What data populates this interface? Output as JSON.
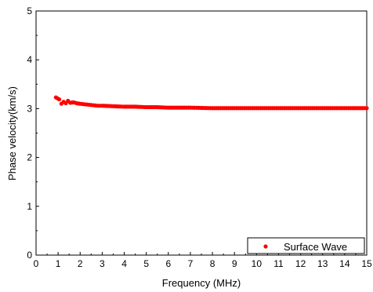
{
  "chart_data": {
    "type": "scatter",
    "xlabel": "Frequency (MHz)",
    "ylabel": "Phase velocity(km/s)",
    "xlim": [
      0,
      15
    ],
    "ylim": [
      0,
      5
    ],
    "x_ticks": [
      "0",
      "1",
      "2",
      "3",
      "4",
      "5",
      "6",
      "7",
      "8",
      "9",
      "10",
      "11",
      "12",
      "13",
      "14",
      "15"
    ],
    "y_ticks": [
      "0",
      "1",
      "2",
      "3",
      "4",
      "5"
    ],
    "grid": false,
    "legend_position": "bottom-right",
    "series": [
      {
        "name": "Surface Wave",
        "color": "#ff0000",
        "marker": "circle",
        "x": [
          0.9,
          1.05,
          1.15,
          1.25,
          1.35,
          1.45,
          1.55,
          1.7,
          1.85,
          2.0,
          2.2,
          2.4,
          2.6,
          2.8,
          3.0,
          3.5,
          4.0,
          4.5,
          5.0,
          5.5,
          6.0,
          7.0,
          8.0,
          9.0,
          10.0,
          11.0,
          12.0,
          13.0,
          14.0,
          15.0
        ],
        "y": [
          3.23,
          3.19,
          3.1,
          3.14,
          3.11,
          3.16,
          3.12,
          3.13,
          3.11,
          3.1,
          3.09,
          3.08,
          3.07,
          3.06,
          3.06,
          3.05,
          3.04,
          3.04,
          3.03,
          3.03,
          3.02,
          3.02,
          3.01,
          3.01,
          3.01,
          3.01,
          3.01,
          3.01,
          3.01,
          3.01
        ]
      }
    ]
  }
}
